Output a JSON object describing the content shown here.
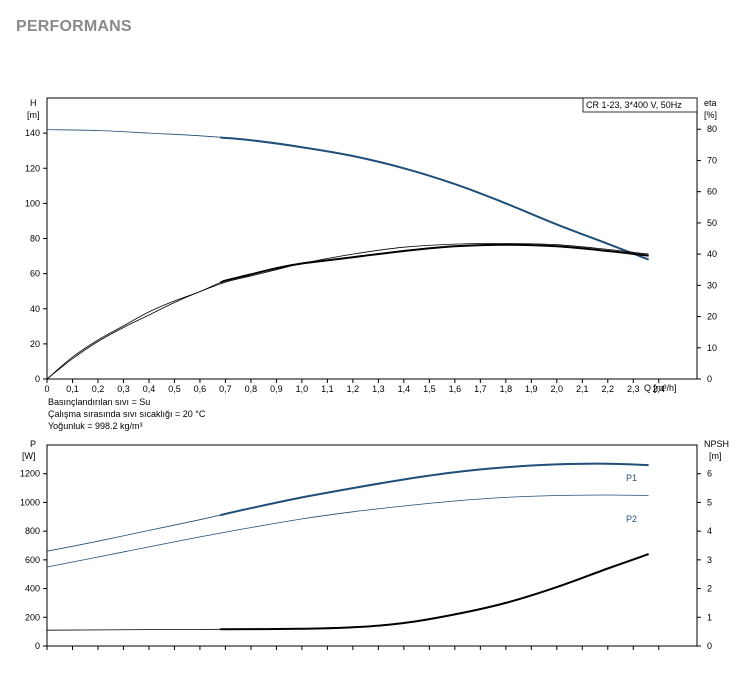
{
  "header": {
    "title": "PERFORMANS"
  },
  "notes": {
    "line1": "Basınçlandırılan sıvı = Su",
    "line2": "Çalışma sırasında sıvı sıcaklığı = 20 °C",
    "line3": "Yoğunluk = 998.2 kg/m³"
  },
  "chart_data": [
    {
      "type": "line",
      "legend": "CR 1-23, 3*400 V, 50Hz",
      "ylabel_left": [
        "H",
        "[m]"
      ],
      "ylabel_right": [
        "eta",
        "[%]"
      ],
      "xlabel": "Q [m³/h]",
      "xlim": [
        0,
        2.55
      ],
      "ylim": [
        0,
        160
      ],
      "y2lim": [
        0,
        90
      ],
      "x_ticks": [
        "0",
        "0,1",
        "0,2",
        "0,3",
        "0,4",
        "0,5",
        "0,6",
        "0,7",
        "0,8",
        "0,9",
        "1,0",
        "1,1",
        "1,2",
        "1,3",
        "1,4",
        "1,5",
        "1,6",
        "1,7",
        "1,8",
        "1,9",
        "2,0",
        "2,1",
        "2,2",
        "2,3",
        "2,4"
      ],
      "y_ticks": [
        "0",
        "20",
        "40",
        "60",
        "80",
        "100",
        "120",
        "140"
      ],
      "y2_ticks": [
        "0",
        "10",
        "20",
        "30",
        "40",
        "50",
        "60",
        "70",
        "80"
      ],
      "grid": false,
      "series": [
        {
          "key": "H",
          "axis": "left",
          "color": "#1f4e79",
          "x": [
            0,
            0.2,
            0.4,
            0.6,
            0.8,
            1.0,
            1.2,
            1.4,
            1.6,
            1.8,
            2.0,
            2.2,
            2.36
          ],
          "y": [
            142,
            141.5,
            140,
            138.5,
            136,
            132,
            127,
            120,
            111,
            100,
            88,
            77,
            68
          ],
          "bold_from": 0.68
        },
        {
          "key": "eta_total",
          "axis": "right",
          "color": "#000000",
          "x": [
            0,
            0.1,
            0.2,
            0.3,
            0.4,
            0.5,
            0.6,
            0.7,
            0.8,
            0.9,
            1.0,
            1.2,
            1.4,
            1.6,
            1.8,
            2.0,
            2.2,
            2.36
          ],
          "y": [
            0,
            6.5,
            12,
            16.5,
            20.5,
            24.5,
            28,
            31,
            33,
            35,
            37,
            40,
            42.2,
            43.2,
            43.4,
            43,
            41.5,
            40
          ],
          "bold_from": 99
        },
        {
          "key": "eta_pump",
          "axis": "right",
          "color": "#000000",
          "x": [
            0,
            0.1,
            0.2,
            0.3,
            0.4,
            0.5,
            0.6,
            0.7,
            0.8,
            0.9,
            1.0,
            1.2,
            1.4,
            1.6,
            1.8,
            2.0,
            2.2,
            2.36
          ],
          "y": [
            0,
            7,
            12.5,
            17,
            21.5,
            25,
            28,
            31.5,
            33.5,
            35.5,
            37,
            39,
            41,
            42.5,
            43,
            42.5,
            41,
            39.5
          ],
          "bold_from": 0.68
        }
      ]
    },
    {
      "type": "line",
      "ylabel_left": [
        "P",
        "[W]"
      ],
      "ylabel_right": [
        "NPSH",
        "[m]"
      ],
      "xlim": [
        0,
        2.55
      ],
      "ylim": [
        0,
        1400
      ],
      "y2lim": [
        0,
        7
      ],
      "y_ticks": [
        "0",
        "200",
        "400",
        "600",
        "800",
        "1000",
        "1200"
      ],
      "y2_ticks": [
        "0",
        "1",
        "2",
        "3",
        "4",
        "5",
        "6"
      ],
      "grid": false,
      "series": [
        {
          "name": "P1",
          "axis": "left",
          "color": "#1f4e79",
          "x": [
            0,
            0.2,
            0.4,
            0.6,
            0.8,
            1.0,
            1.2,
            1.4,
            1.6,
            1.8,
            2.0,
            2.2,
            2.36
          ],
          "y": [
            660,
            730,
            805,
            880,
            960,
            1035,
            1100,
            1160,
            1210,
            1245,
            1265,
            1270,
            1260
          ],
          "bold_from": 0.68
        },
        {
          "name": "P2",
          "axis": "left",
          "color": "#1f4e79",
          "x": [
            0,
            0.2,
            0.4,
            0.6,
            0.8,
            1.0,
            1.2,
            1.4,
            1.6,
            1.8,
            2.0,
            2.2,
            2.36
          ],
          "y": [
            550,
            620,
            690,
            760,
            825,
            885,
            935,
            975,
            1010,
            1035,
            1048,
            1052,
            1048
          ],
          "bold_from": 99
        },
        {
          "key": "NPSH",
          "axis": "right",
          "color": "#000000",
          "x": [
            0,
            0.4,
            0.68,
            1.0,
            1.2,
            1.4,
            1.6,
            1.8,
            2.0,
            2.2,
            2.36
          ],
          "y": [
            0.55,
            0.57,
            0.58,
            0.6,
            0.65,
            0.8,
            1.1,
            1.5,
            2.05,
            2.7,
            3.2
          ],
          "bold_from": 0.68
        }
      ]
    }
  ]
}
